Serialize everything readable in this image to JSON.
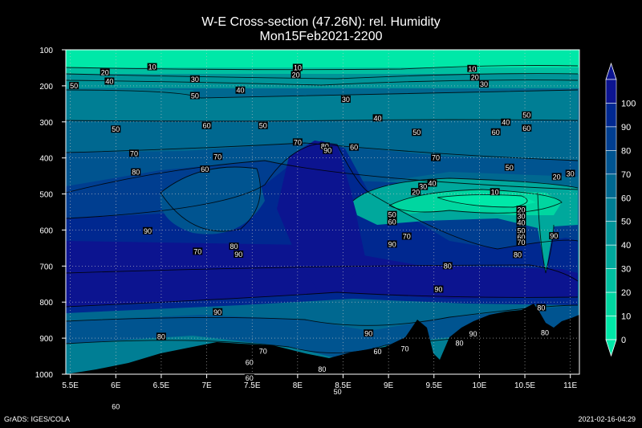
{
  "header": {
    "title_line1": "W-E Cross-section (47.26N): rel. Humidity",
    "title_line2": "Mon15Feb2021-2200"
  },
  "footer": {
    "left": "GrADS: IGES/COLA",
    "right": "2021-02-16-04:29"
  },
  "chart_data": {
    "type": "heatmap",
    "title": "W-E Cross-section (47.26N): rel. Humidity",
    "subtitle": "Mon15Feb2021-2200",
    "xlabel": "",
    "ylabel": "",
    "x_ticks": [
      "5.5E",
      "6E",
      "6.5E",
      "7E",
      "7.5E",
      "8E",
      "8.5E",
      "9E",
      "9.5E",
      "10E",
      "10.5E",
      "11E"
    ],
    "x_tick_values": [
      5.5,
      6.0,
      6.5,
      7.0,
      7.5,
      8.0,
      8.5,
      9.0,
      9.5,
      10.0,
      10.5,
      11.0
    ],
    "y_ticks": [
      "100",
      "200",
      "300",
      "400",
      "500",
      "600",
      "700",
      "800",
      "900",
      "1000"
    ],
    "y_tick_values": [
      100,
      200,
      300,
      400,
      500,
      600,
      700,
      800,
      900,
      1000
    ],
    "xlim": [
      5.45,
      11.1
    ],
    "ylim": [
      1000,
      100
    ],
    "y_axis": "pressure (hPa), inverted",
    "grid": true,
    "colorbar": {
      "levels": [
        "0",
        "10",
        "20",
        "30",
        "40",
        "50",
        "60",
        "70",
        "80",
        "90",
        "100"
      ],
      "colors": [
        "#00E8A8",
        "#00D6A0",
        "#00BFA0",
        "#00A89C",
        "#009498",
        "#007E94",
        "#006890",
        "#005490",
        "#003E90",
        "#002890",
        "#0C1490"
      ]
    },
    "contour_labels": [
      {
        "x": 5.54,
        "p": 200,
        "v": "50"
      },
      {
        "x": 5.88,
        "p": 163,
        "v": "20"
      },
      {
        "x": 5.93,
        "p": 188,
        "v": "40"
      },
      {
        "x": 6.4,
        "p": 148,
        "v": "10"
      },
      {
        "x": 6.87,
        "p": 182,
        "v": "30"
      },
      {
        "x": 6.87,
        "p": 228,
        "v": "50"
      },
      {
        "x": 7.37,
        "p": 213,
        "v": "40"
      },
      {
        "x": 8.0,
        "p": 150,
        "v": "10"
      },
      {
        "x": 7.98,
        "p": 170,
        "v": "20"
      },
      {
        "x": 8.53,
        "p": 238,
        "v": "30"
      },
      {
        "x": 8.88,
        "p": 290,
        "v": "40"
      },
      {
        "x": 6.0,
        "p": 321,
        "v": "50"
      },
      {
        "x": 7.0,
        "p": 311,
        "v": "60"
      },
      {
        "x": 7.62,
        "p": 311,
        "v": "50"
      },
      {
        "x": 9.31,
        "p": 330,
        "v": "50"
      },
      {
        "x": 9.92,
        "p": 153,
        "v": "10"
      },
      {
        "x": 9.95,
        "p": 177,
        "v": "20"
      },
      {
        "x": 10.05,
        "p": 196,
        "v": "30"
      },
      {
        "x": 10.52,
        "p": 282,
        "v": "50"
      },
      {
        "x": 10.29,
        "p": 302,
        "v": "40"
      },
      {
        "x": 10.18,
        "p": 329,
        "v": "60"
      },
      {
        "x": 10.52,
        "p": 318,
        "v": "60"
      },
      {
        "x": 6.2,
        "p": 388,
        "v": "70"
      },
      {
        "x": 8.0,
        "p": 357,
        "v": "70"
      },
      {
        "x": 8.3,
        "p": 368,
        "v": "80"
      },
      {
        "x": 8.33,
        "p": 380,
        "v": "90"
      },
      {
        "x": 8.62,
        "p": 371,
        "v": "60"
      },
      {
        "x": 7.12,
        "p": 397,
        "v": "70"
      },
      {
        "x": 6.98,
        "p": 432,
        "v": "60"
      },
      {
        "x": 9.52,
        "p": 400,
        "v": "70"
      },
      {
        "x": 10.33,
        "p": 427,
        "v": "50"
      },
      {
        "x": 6.22,
        "p": 440,
        "v": "80"
      },
      {
        "x": 10.85,
        "p": 453,
        "v": "20"
      },
      {
        "x": 11.0,
        "p": 444,
        "v": "30"
      },
      {
        "x": 9.48,
        "p": 471,
        "v": "40"
      },
      {
        "x": 9.38,
        "p": 480,
        "v": "30"
      },
      {
        "x": 9.3,
        "p": 495,
        "v": "20"
      },
      {
        "x": 10.17,
        "p": 495,
        "v": "10"
      },
      {
        "x": 10.46,
        "p": 544,
        "v": "20"
      },
      {
        "x": 10.46,
        "p": 562,
        "v": "30"
      },
      {
        "x": 10.46,
        "p": 580,
        "v": "40"
      },
      {
        "x": 10.46,
        "p": 602,
        "v": "50"
      },
      {
        "x": 10.46,
        "p": 620,
        "v": "60"
      },
      {
        "x": 10.46,
        "p": 635,
        "v": "70"
      },
      {
        "x": 9.04,
        "p": 558,
        "v": "50"
      },
      {
        "x": 9.04,
        "p": 578,
        "v": "60"
      },
      {
        "x": 6.35,
        "p": 603,
        "v": "90"
      },
      {
        "x": 9.2,
        "p": 618,
        "v": "70"
      },
      {
        "x": 9.04,
        "p": 640,
        "v": "90"
      },
      {
        "x": 10.42,
        "p": 669,
        "v": "80"
      },
      {
        "x": 10.82,
        "p": 617,
        "v": "90"
      },
      {
        "x": 7.3,
        "p": 646,
        "v": "80"
      },
      {
        "x": 7.35,
        "p": 668,
        "v": "90"
      },
      {
        "x": 6.9,
        "p": 660,
        "v": "70"
      },
      {
        "x": 9.65,
        "p": 700,
        "v": "80"
      },
      {
        "x": 9.55,
        "p": 765,
        "v": "90"
      },
      {
        "x": 7.12,
        "p": 828,
        "v": "90"
      },
      {
        "x": 10.68,
        "p": 816,
        "v": "80"
      },
      {
        "x": 6.5,
        "p": 896,
        "v": "80"
      },
      {
        "x": 8.78,
        "p": 887,
        "v": "90"
      },
      {
        "x": 9.93,
        "p": 889,
        "v": "90"
      },
      {
        "x": 10.72,
        "p": 885,
        "v": "80"
      },
      {
        "x": 9.78,
        "p": 914,
        "v": "80"
      },
      {
        "x": 9.18,
        "p": 930,
        "v": "70"
      },
      {
        "x": 8.88,
        "p": 938,
        "v": "60"
      },
      {
        "x": 7.62,
        "p": 937,
        "v": "70"
      },
      {
        "x": 7.47,
        "p": 968,
        "v": "60"
      },
      {
        "x": 8.27,
        "p": 987,
        "v": "80"
      },
      {
        "x": 7.47,
        "p": 1011,
        "v": "60"
      },
      {
        "x": 8.44,
        "p": 1049,
        "v": "50"
      },
      {
        "x": 6.0,
        "p": 1090,
        "v": "60"
      }
    ]
  }
}
